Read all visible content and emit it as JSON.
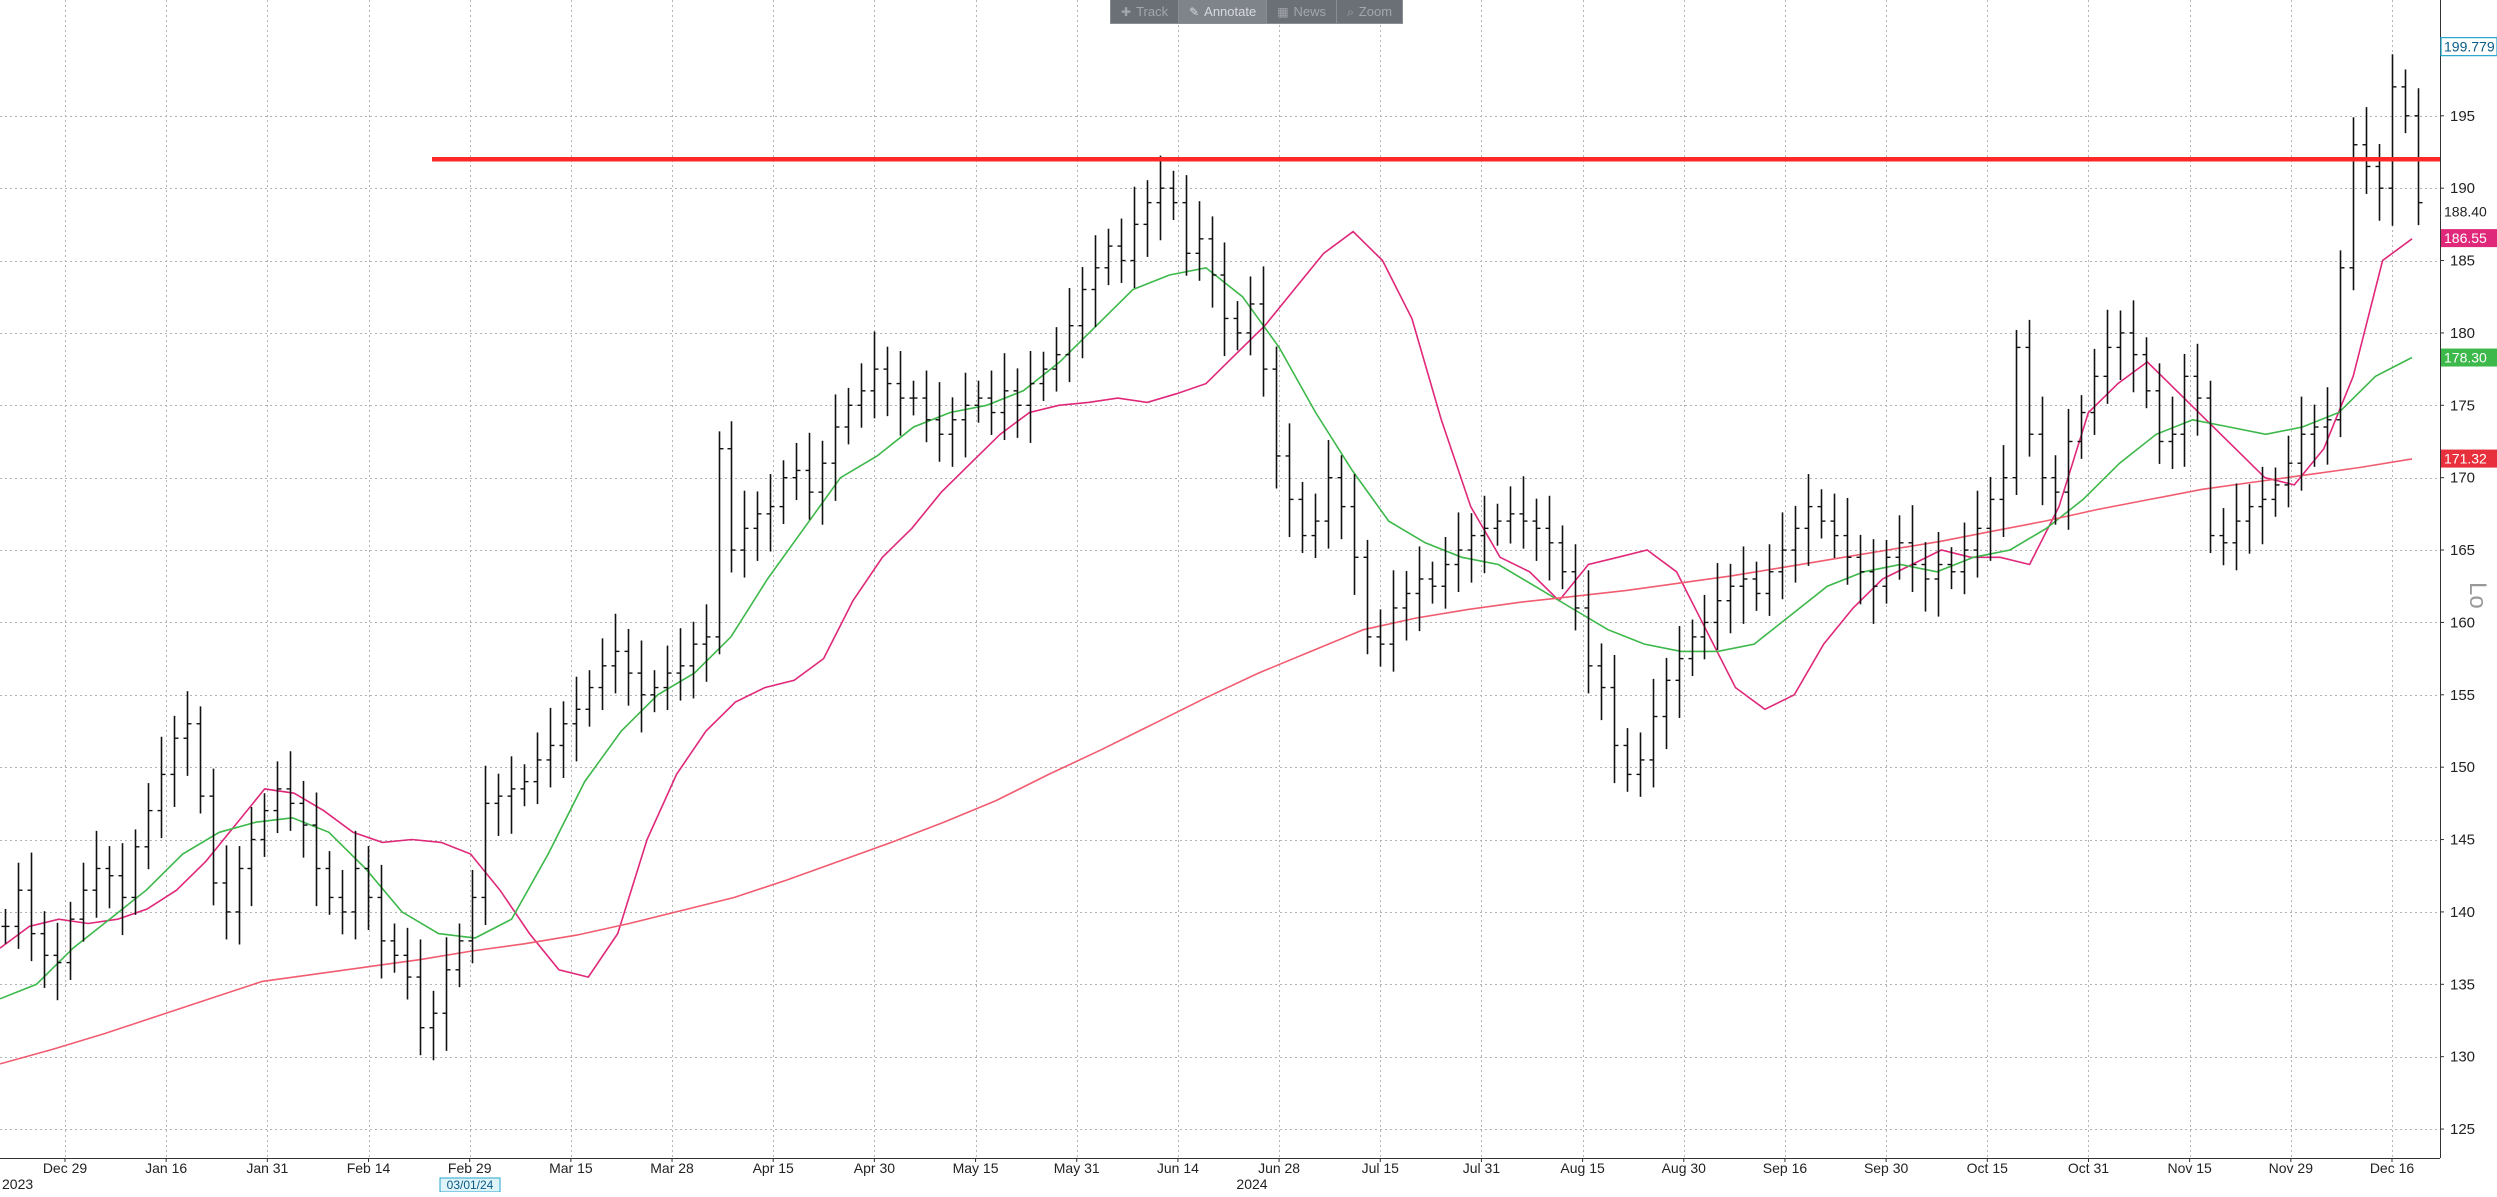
{
  "toolbar": {
    "buttons": [
      {
        "label": "Track",
        "icon": "crosshair-icon"
      },
      {
        "label": "Annotate",
        "icon": "pencil-icon"
      },
      {
        "label": "News",
        "icon": "news-icon"
      },
      {
        "label": "Zoom",
        "icon": "magnifier-icon"
      }
    ],
    "active": "Annotate"
  },
  "chart_data": {
    "type": "bar",
    "subtype": "ohlc",
    "x_tick_labels": [
      "Dec 29",
      "Jan 16",
      "Jan 31",
      "Feb 14",
      "Feb 29",
      "Mar 15",
      "Mar 28",
      "Apr 15",
      "Apr 30",
      "May 15",
      "May 31",
      "Jun 14",
      "Jun 28",
      "Jul 15",
      "Jul 31",
      "Aug 15",
      "Aug 30",
      "Sep 16",
      "Sep 30",
      "Oct 15",
      "Oct 31",
      "Nov 15",
      "Nov 29",
      "Dec 16"
    ],
    "year_labels": [
      "2023",
      "2024"
    ],
    "date_marker": "03/01/24",
    "y_ticks": [
      125,
      130,
      135,
      140,
      145,
      150,
      155,
      160,
      165,
      170,
      175,
      180,
      185,
      190,
      195
    ],
    "ylim": [
      123,
      203
    ],
    "grid": true,
    "axis_side": "right",
    "axis_scale_label": "Lo",
    "price_bars": [
      139.0,
      141.5,
      138.5,
      137.0,
      136.5,
      139.5,
      141.5,
      143.0,
      142.5,
      141.0,
      144.5,
      147.0,
      149.5,
      152.0,
      153.0,
      148.0,
      142.0,
      140.0,
      143.0,
      145.0,
      147.0,
      148.5,
      147.5,
      146.0,
      143.0,
      141.0,
      140.0,
      143.0,
      141.0,
      138.0,
      137.0,
      135.5,
      132.0,
      133.0,
      136.0,
      138.0,
      141.0,
      147.5,
      148.0,
      148.5,
      149.0,
      150.5,
      151.5,
      153.0,
      154.0,
      155.5,
      157.0,
      158.0,
      156.5,
      155.0,
      155.5,
      156.5,
      157.0,
      158.5,
      159.0,
      172.0,
      165.0,
      166.5,
      167.5,
      168.0,
      170.0,
      170.5,
      169.0,
      171.0,
      173.5,
      175.0,
      176.0,
      177.5,
      176.5,
      175.5,
      175.5,
      174.0,
      173.0,
      174.0,
      175.0,
      175.5,
      174.5,
      176.0,
      175.0,
      176.5,
      177.5,
      178.5,
      180.5,
      183.0,
      184.5,
      186.0,
      185.0,
      187.5,
      189.0,
      190.0,
      189.0,
      185.5,
      186.5,
      184.0,
      181.0,
      180.0,
      182.0,
      177.5,
      171.5,
      168.5,
      166.0,
      167.0,
      170.0,
      168.0,
      164.5,
      159.0,
      158.5,
      161.0,
      162.0,
      163.0,
      162.5,
      164.0,
      165.0,
      166.0,
      166.5,
      167.0,
      167.5,
      167.0,
      166.5,
      165.5,
      163.5,
      161.0,
      157.0,
      155.5,
      151.5,
      149.5,
      150.5,
      153.5,
      156.0,
      157.5,
      159.0,
      160.0,
      161.5,
      162.5,
      163.0,
      162.0,
      163.5,
      165.0,
      166.5,
      168.0,
      167.0,
      166.0,
      164.5,
      163.5,
      162.5,
      164.5,
      165.5,
      164.0,
      163.0,
      164.0,
      163.5,
      165.0,
      166.5,
      168.5,
      170.0,
      179.0,
      173.0,
      170.0,
      169.0,
      172.5,
      174.5,
      177.0,
      179.0,
      180.0,
      178.5,
      176.0,
      172.5,
      173.0,
      177.0,
      175.5,
      166.0,
      165.5,
      167.0,
      168.0,
      168.5,
      169.5,
      171.0,
      173.0,
      173.5,
      174.0,
      184.5,
      193.0,
      191.5,
      190.0,
      197.0,
      195.0,
      189.0
    ],
    "series": [
      {
        "name": "",
        "color": "#e0287a",
        "values": [
          137.5,
          139.0,
          139.5,
          139.2,
          139.5,
          140.2,
          141.5,
          143.5,
          146.0,
          148.5,
          148.2,
          147.0,
          145.5,
          144.8,
          145.0,
          144.8,
          144.0,
          141.5,
          138.5,
          136.0,
          135.5,
          138.5,
          145.0,
          149.5,
          152.5,
          154.5,
          155.5,
          156.0,
          157.5,
          161.5,
          164.5,
          166.5,
          169.0,
          171.0,
          173.0,
          174.5,
          175.0,
          175.2,
          175.5,
          175.2,
          175.8,
          176.5,
          178.5,
          180.5,
          183.0,
          185.5,
          187.0,
          185.0,
          181.0,
          174.0,
          168.0,
          164.5,
          163.5,
          161.5,
          164.0,
          164.5,
          165.0,
          163.5,
          159.5,
          155.5,
          154.0,
          155.0,
          158.5,
          161.0,
          163.0,
          164.0,
          165.0,
          164.5,
          164.5,
          164.0,
          168.0,
          174.5,
          176.5,
          178.0,
          176.0,
          174.0,
          172.0,
          170.0,
          169.5,
          172.0,
          177.0,
          185.0,
          186.5
        ]
      },
      {
        "name": "",
        "color": "#3db84a",
        "values": [
          134.0,
          135.0,
          137.5,
          139.5,
          141.5,
          144.0,
          145.5,
          146.2,
          146.5,
          145.5,
          143.0,
          140.0,
          138.5,
          138.2,
          139.5,
          144.0,
          149.0,
          152.5,
          155.0,
          156.5,
          159.0,
          163.0,
          166.5,
          170.0,
          171.5,
          173.5,
          174.5,
          175.0,
          176.0,
          178.0,
          180.5,
          183.0,
          184.0,
          184.5,
          182.5,
          179.0,
          174.5,
          170.5,
          167.0,
          165.5,
          164.5,
          164.0,
          162.5,
          161.0,
          159.5,
          158.5,
          158.0,
          158.0,
          158.5,
          160.5,
          162.5,
          163.5,
          164.0,
          163.5,
          164.5,
          165.0,
          166.5,
          168.5,
          171.0,
          173.0,
          174.0,
          173.5,
          173.0,
          173.5,
          174.5,
          177.0,
          178.3
        ]
      },
      {
        "name": "",
        "color": "#f25c70",
        "values": [
          129.5,
          130.5,
          131.6,
          132.8,
          134.0,
          135.2,
          135.7,
          136.2,
          136.7,
          137.3,
          137.8,
          138.4,
          139.2,
          140.1,
          141.0,
          142.2,
          143.5,
          144.8,
          146.2,
          147.7,
          149.5,
          151.2,
          153.0,
          154.8,
          156.5,
          158.0,
          159.5,
          160.3,
          160.9,
          161.4,
          161.8,
          162.2,
          162.7,
          163.2,
          163.8,
          164.4,
          165.0,
          165.6,
          166.3,
          167.0,
          167.8,
          168.5,
          169.2,
          169.7,
          170.2,
          170.7,
          171.3
        ]
      }
    ],
    "horizontal_line": {
      "value": 192.0,
      "color": "#ff2828"
    },
    "value_tags": [
      {
        "label": "199.779",
        "value": 199.779,
        "bg": "#ffffff",
        "fg": "#0a5a8a",
        "border": "#26a5cf"
      },
      {
        "label": "188.40",
        "value": 188.4,
        "bg": "#ffffff",
        "fg": "#222222",
        "border": "none"
      },
      {
        "label": "186.55",
        "value": 186.55,
        "bg": "#e0287a",
        "fg": "#ffffff",
        "border": "none"
      },
      {
        "label": "178.30",
        "value": 178.3,
        "bg": "#3db84a",
        "fg": "#ffffff",
        "border": "none"
      },
      {
        "label": "171.32",
        "value": 171.32,
        "bg": "#e8303c",
        "fg": "#ffffff",
        "border": "none"
      }
    ]
  }
}
